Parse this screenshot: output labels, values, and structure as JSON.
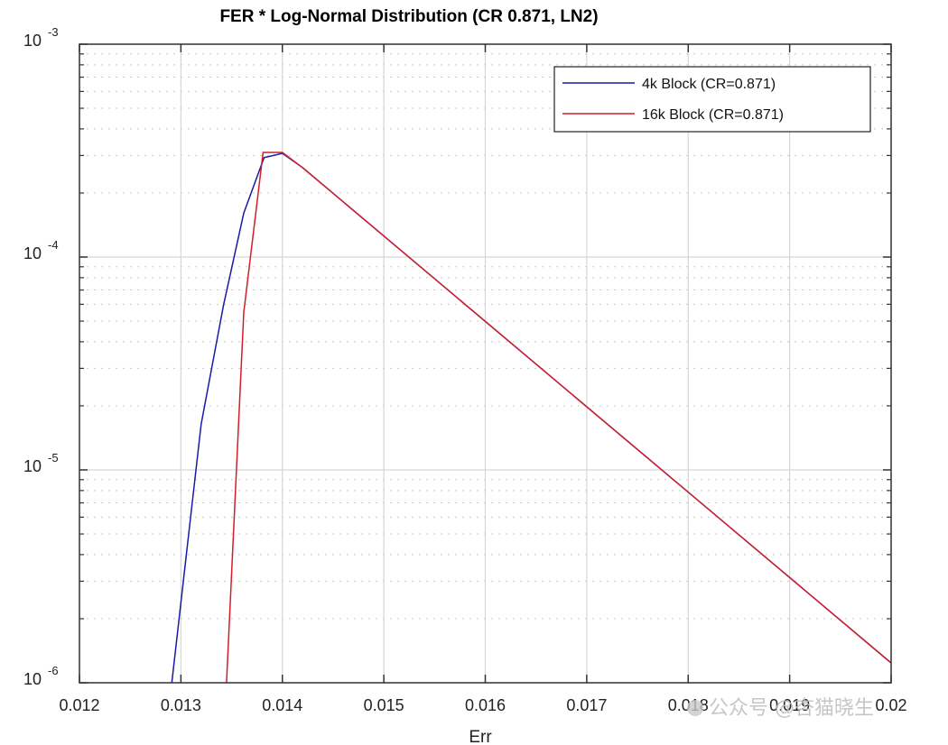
{
  "chart_data": {
    "type": "line",
    "title": "FER * Log-Normal Distribution (CR 0.871, LN2)",
    "xlabel": "Err",
    "ylabel": "",
    "xscale": "linear",
    "yscale": "log",
    "xlim": [
      0.012,
      0.02
    ],
    "ylim": [
      1e-06,
      0.001
    ],
    "x_ticks": [
      "0.012",
      "0.013",
      "0.014",
      "0.015",
      "0.016",
      "0.017",
      "0.018",
      "0.019",
      "0.02"
    ],
    "y_ticks": [
      {
        "base": "10",
        "exp": "-3",
        "value": 0.001
      },
      {
        "base": "10",
        "exp": "-4",
        "value": 0.0001
      },
      {
        "base": "10",
        "exp": "-5",
        "value": 1e-05
      },
      {
        "base": "10",
        "exp": "-6",
        "value": 1e-06
      }
    ],
    "grid": {
      "major": true,
      "minor_y": true
    },
    "legend_position": "upper right",
    "series": [
      {
        "name": "4k Block (CR=0.871)",
        "color": "#1a1aa6",
        "x": [
          0.01291,
          0.0132,
          0.01342,
          0.01362,
          0.01382,
          0.014,
          0.0142,
          0.02
        ],
        "values": [
          1e-06,
          1.64e-05,
          5.95e-05,
          0.000161,
          0.000293,
          0.000307,
          0.000263,
          1.24e-06
        ]
      },
      {
        "name": "16k Block (CR=0.871)",
        "color": "#d11f2a",
        "x": [
          0.01345,
          0.01362,
          0.01381,
          0.014,
          0.0142,
          0.02
        ],
        "values": [
          1e-06,
          5.5e-05,
          0.00031,
          0.00031,
          0.000263,
          1.24e-06
        ]
      }
    ]
  },
  "watermark": {
    "text": "公众号 @杏猫晓生"
  }
}
